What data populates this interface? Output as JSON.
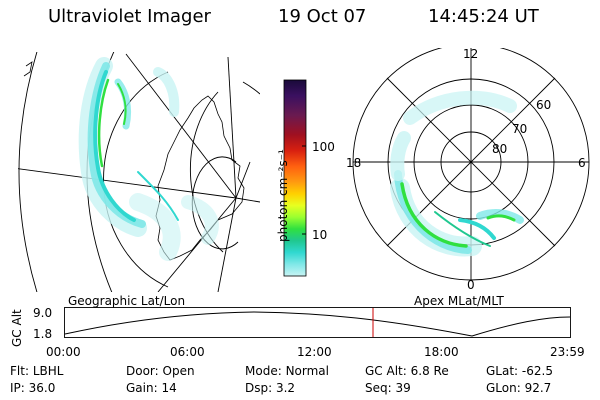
{
  "header": {
    "instrument": "Ultraviolet Imager",
    "date": "19 Oct 07",
    "time": "14:45:24 UT"
  },
  "geo_panel": {
    "label": "Geographic Lat/Lon"
  },
  "polar_panel": {
    "label": "Apex MLat/MLT",
    "mlt_labels": [
      "12",
      "18",
      "6",
      "0"
    ],
    "lat_labels": [
      "60",
      "70",
      "80"
    ]
  },
  "colorbar": {
    "unit_label": "photon cm⁻²s⁻¹",
    "ticks": [
      "100",
      "10"
    ],
    "colors": [
      "#1a0a3a",
      "#3a1060",
      "#6a1a50",
      "#a01020",
      "#d82010",
      "#ff6010",
      "#ff9a10",
      "#ffd000",
      "#e8ff20",
      "#9aff30",
      "#30e040",
      "#20c890",
      "#30d8d0",
      "#80e8e8",
      "#c8f4f4"
    ]
  },
  "altitude_plot": {
    "ylabel": "GC Alt",
    "yticks": [
      "9.0",
      "1.8"
    ],
    "xticks": [
      "00:00",
      "06:00",
      "12:00",
      "18:00",
      "23:59"
    ],
    "current_time_color": "#cc0000"
  },
  "info": {
    "row1": [
      {
        "label": "Flt:",
        "value": "LBHL"
      },
      {
        "label": "Door:",
        "value": "Open"
      },
      {
        "label": "Mode:",
        "value": "Normal"
      },
      {
        "label": "GC Alt:",
        "value": "6.8 Re"
      },
      {
        "label": "GLat:",
        "value": "-62.5"
      }
    ],
    "row2": [
      {
        "label": "IP:",
        "value": "36.0"
      },
      {
        "label": "Gain:",
        "value": "14"
      },
      {
        "label": "Dsp:",
        "value": "3.2"
      },
      {
        "label": "Seq:",
        "value": "39"
      },
      {
        "label": "GLon:",
        "value": "92.7"
      }
    ]
  }
}
